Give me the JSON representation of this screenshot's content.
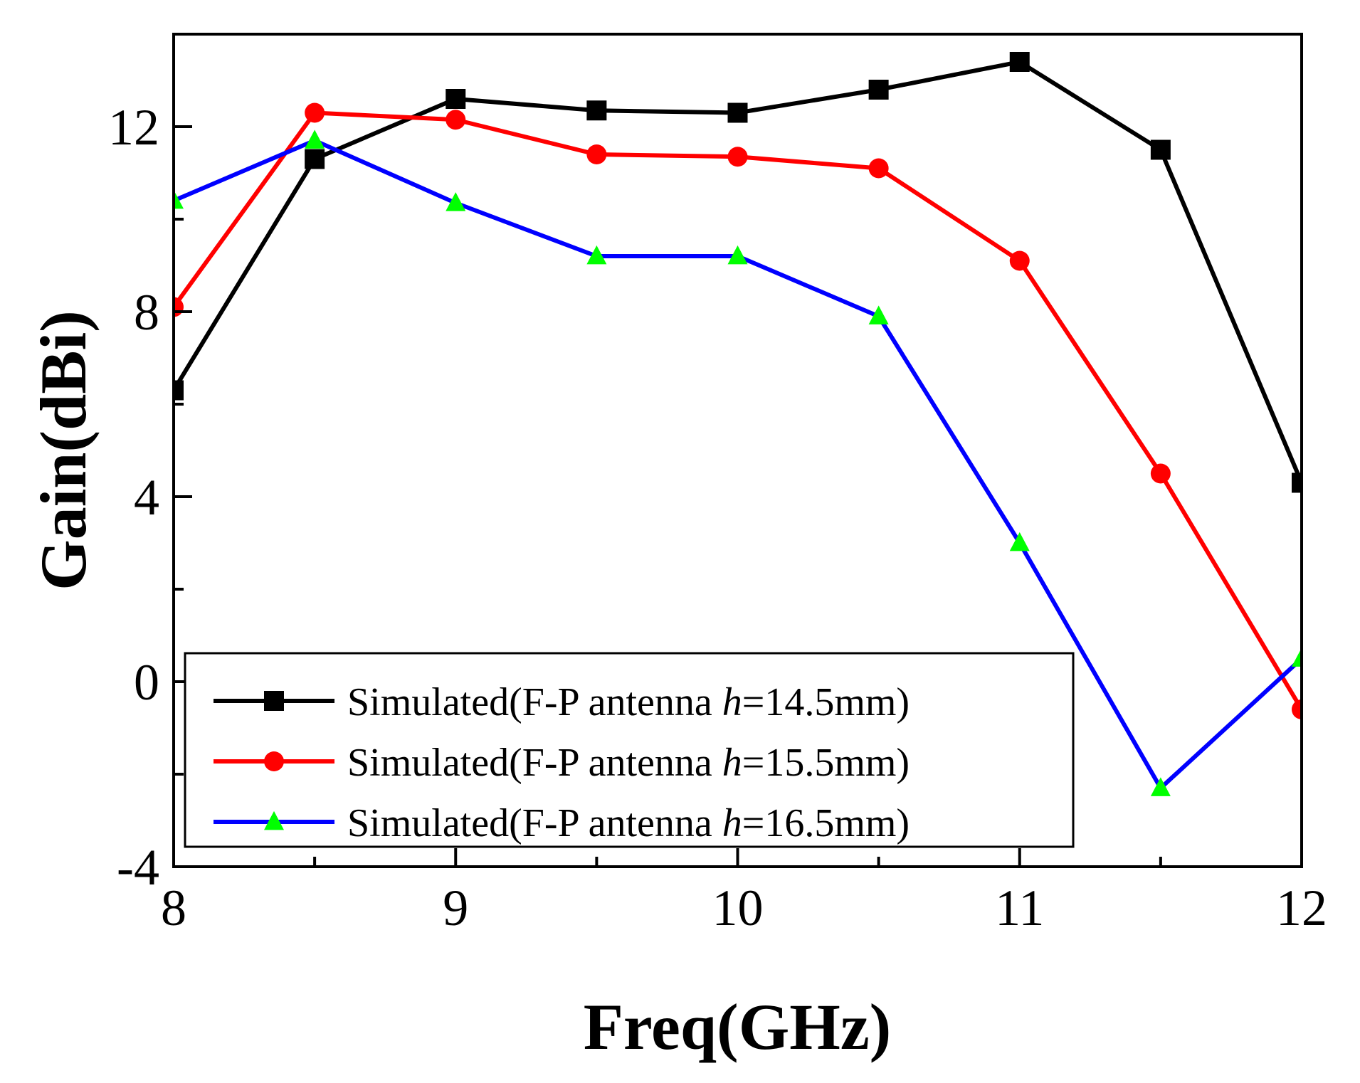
{
  "chart_data": {
    "type": "line",
    "title": "",
    "xlabel": "Freq(GHz)",
    "ylabel": "Gain(dBi)",
    "xlim": [
      8,
      12
    ],
    "ylim": [
      -4,
      14
    ],
    "xticks": [
      8,
      9,
      10,
      11,
      12
    ],
    "yticks": [
      -4,
      0,
      4,
      8,
      12
    ],
    "xtick_labels": [
      "8",
      "9",
      "10",
      "11",
      "12"
    ],
    "ytick_labels": [
      "-4",
      "0",
      "4",
      "8",
      "12"
    ],
    "grid": false,
    "legend_position": "bottom-left",
    "x": [
      8,
      8.5,
      9,
      9.5,
      10,
      10.5,
      11,
      11.5,
      12
    ],
    "series": [
      {
        "name": "Simulated(F-P antenna h=14.5mm)",
        "legend_prefix": "Simulated(F-P antenna ",
        "legend_var": "h",
        "legend_suffix": "=14.5mm)",
        "color": "#000000",
        "marker": "square",
        "marker_color": "#000000",
        "values": [
          6.3,
          11.3,
          12.6,
          12.35,
          12.3,
          12.8,
          13.4,
          11.5,
          4.3
        ]
      },
      {
        "name": "Simulated(F-P antenna h=15.5mm)",
        "legend_prefix": "Simulated(F-P antenna ",
        "legend_var": "h",
        "legend_suffix": "=15.5mm)",
        "color": "#ff0000",
        "marker": "circle",
        "marker_color": "#ff0000",
        "values": [
          8.1,
          12.3,
          12.15,
          11.4,
          11.35,
          11.1,
          9.1,
          4.5,
          -0.6
        ]
      },
      {
        "name": "Simulated(F-P antenna h=16.5mm)",
        "legend_prefix": "Simulated(F-P antenna ",
        "legend_var": "h",
        "legend_suffix": "=16.5mm)",
        "color": "#0000ff",
        "marker": "triangle",
        "marker_color": "#00ff00",
        "values": [
          10.4,
          11.7,
          10.35,
          9.2,
          9.2,
          7.9,
          3.0,
          -2.3,
          0.5
        ]
      }
    ]
  }
}
